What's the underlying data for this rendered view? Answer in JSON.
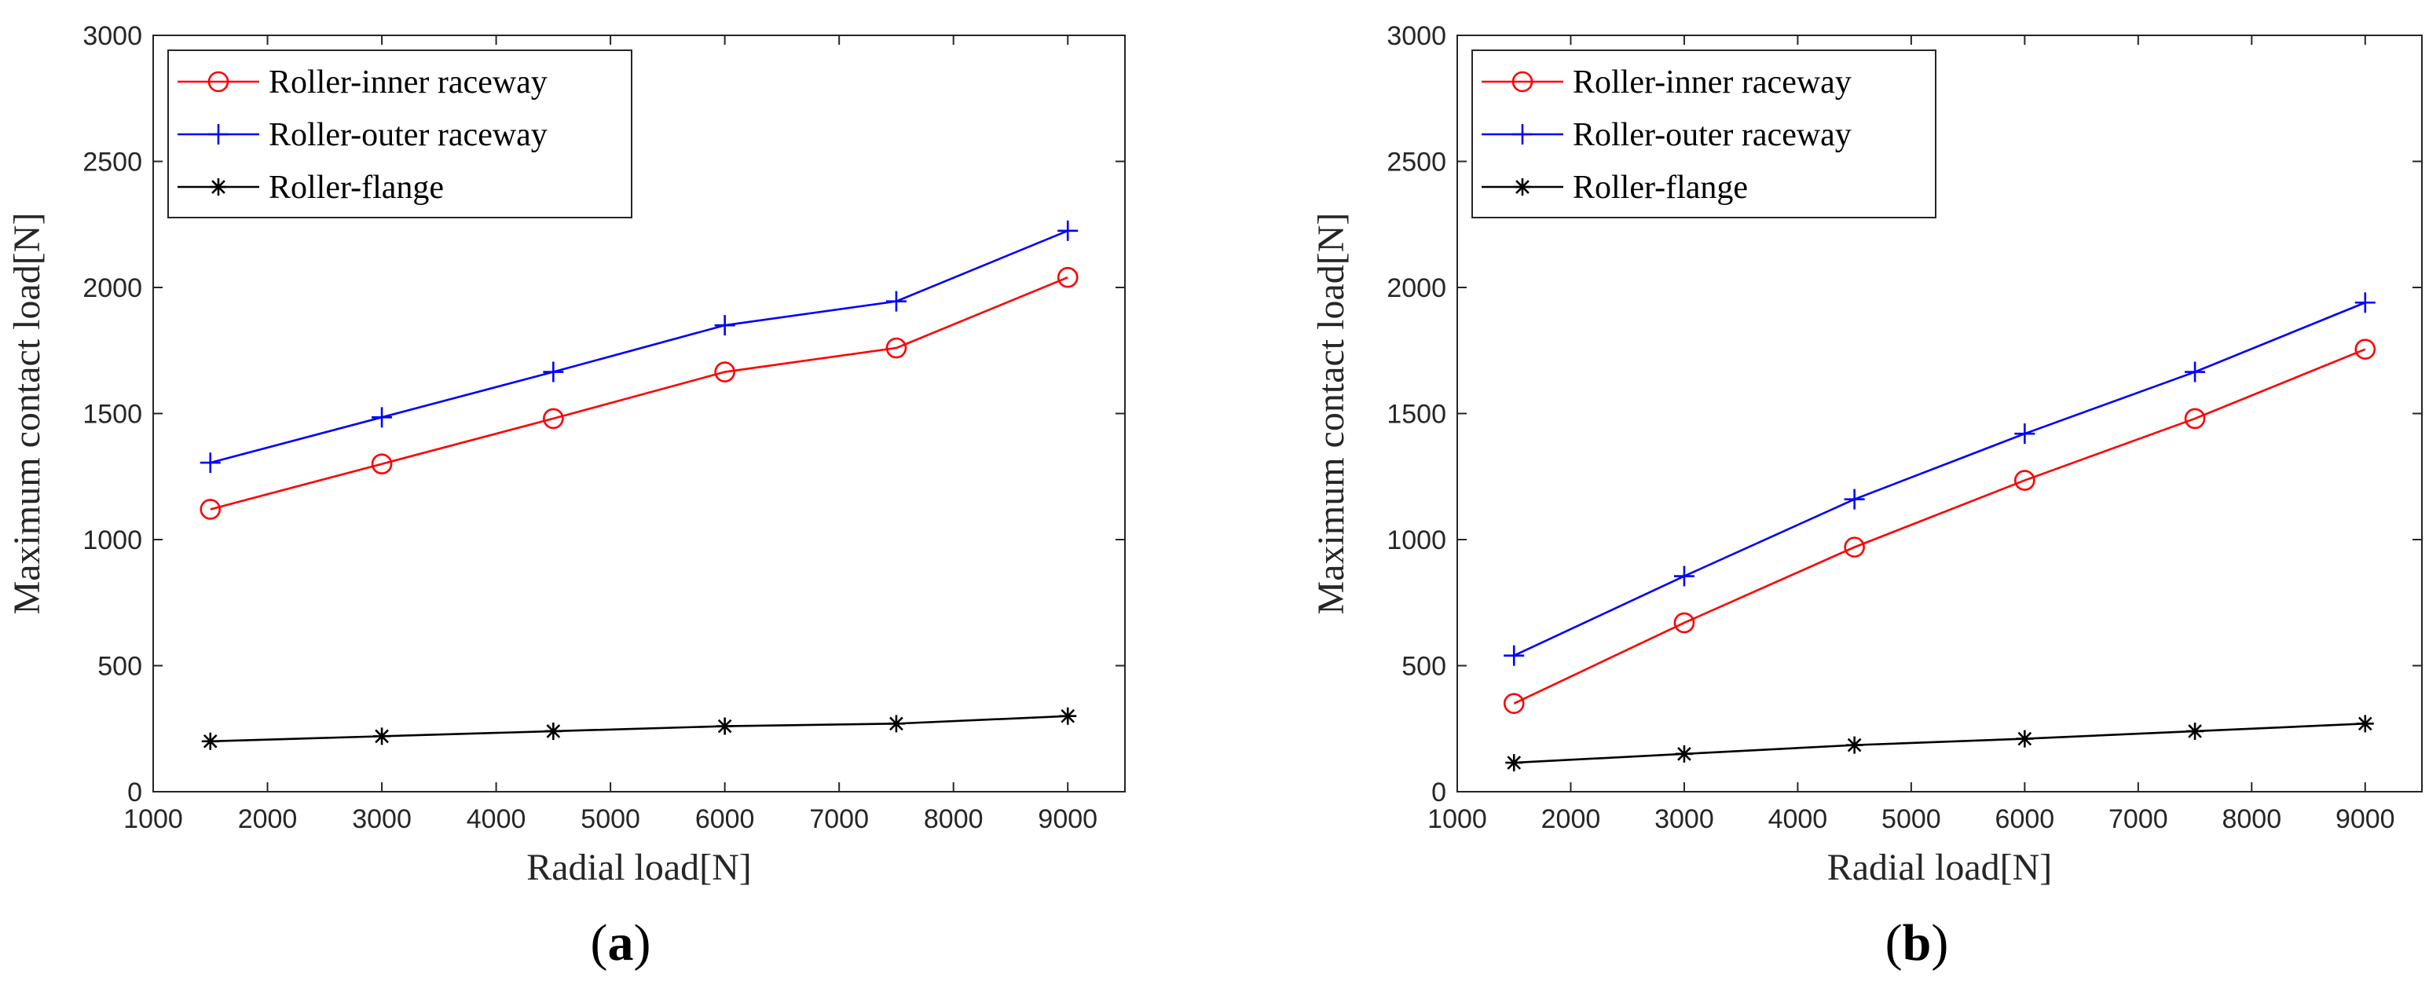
{
  "chart_data": [
    {
      "type": "line",
      "caption_open": "(",
      "caption_letter": "a",
      "caption_close": ")",
      "xlabel": "Radial load[N]",
      "ylabel": "Maximum contact load[N]",
      "xlim": [
        1000,
        9500
      ],
      "ylim": [
        0,
        3000
      ],
      "xticks": [
        1000,
        2000,
        3000,
        4000,
        5000,
        6000,
        7000,
        8000,
        9000
      ],
      "yticks": [
        0,
        500,
        1000,
        1500,
        2000,
        2500,
        3000
      ],
      "legend_position": "top-left",
      "x": [
        1500,
        3000,
        4500,
        6000,
        7500,
        9000
      ],
      "series": [
        {
          "name": "Roller-inner raceway",
          "color": "#ff0000",
          "marker": "circle",
          "values": [
            1120,
            1300,
            1480,
            1665,
            1760,
            2040
          ]
        },
        {
          "name": "Roller-outer raceway",
          "color": "#0000ff",
          "marker": "plus",
          "values": [
            1305,
            1485,
            1665,
            1850,
            1945,
            2225
          ]
        },
        {
          "name": "Roller-flange",
          "color": "#000000",
          "marker": "asterisk",
          "values": [
            200,
            220,
            240,
            260,
            270,
            300
          ]
        }
      ]
    },
    {
      "type": "line",
      "caption_open": "(",
      "caption_letter": "b",
      "caption_close": ")",
      "xlabel": "Radial load[N]",
      "ylabel": "Maximum contact load[N]",
      "xlim": [
        1000,
        9500
      ],
      "ylim": [
        0,
        3000
      ],
      "xticks": [
        1000,
        2000,
        3000,
        4000,
        5000,
        6000,
        7000,
        8000,
        9000
      ],
      "yticks": [
        0,
        500,
        1000,
        1500,
        2000,
        2500,
        3000
      ],
      "legend_position": "top-left",
      "x": [
        1500,
        3000,
        4500,
        6000,
        7500,
        9000
      ],
      "series": [
        {
          "name": "Roller-inner raceway",
          "color": "#ff0000",
          "marker": "circle",
          "values": [
            350,
            670,
            970,
            1235,
            1480,
            1755
          ]
        },
        {
          "name": "Roller-outer raceway",
          "color": "#0000ff",
          "marker": "plus",
          "values": [
            540,
            855,
            1160,
            1420,
            1665,
            1940
          ]
        },
        {
          "name": "Roller-flange",
          "color": "#000000",
          "marker": "asterisk",
          "values": [
            115,
            150,
            185,
            210,
            240,
            270
          ]
        }
      ]
    }
  ]
}
